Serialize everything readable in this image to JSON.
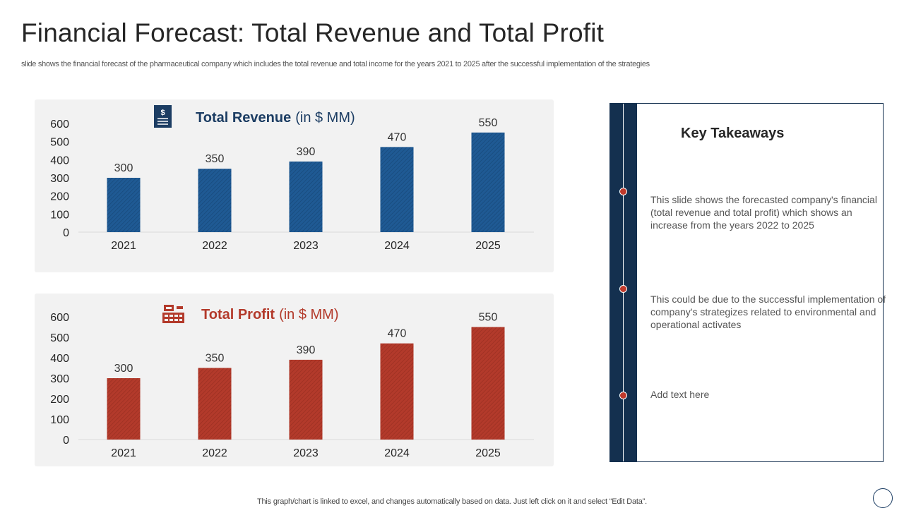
{
  "header": {
    "title": "Financial Forecast: Total Revenue and Total Profit",
    "subtitle": "slide shows the financial forecast of the pharmaceutical company which includes the total revenue and total income for the years 2021 to 2025 after the successful implementation of the strategies"
  },
  "colors": {
    "revenue_bar": "#1f5a94",
    "profit_bar": "#b33a2b",
    "panel_bg": "#f2f2f2",
    "navy": "#14304f",
    "accent_red": "#c0392b"
  },
  "chart_data": [
    {
      "type": "bar",
      "title_bold": "Total Revenue",
      "title_unit": "(in $ MM)",
      "icon": "dollar-document-icon",
      "categories": [
        "2021",
        "2022",
        "2023",
        "2024",
        "2025"
      ],
      "values": [
        300,
        350,
        390,
        470,
        550
      ],
      "data_labels": [
        "300",
        "350",
        "390",
        "470",
        "550"
      ],
      "yticks": [
        "0",
        "100",
        "200",
        "300",
        "400",
        "500",
        "600"
      ],
      "ylim": [
        0,
        600
      ],
      "xlabel": "",
      "ylabel": ""
    },
    {
      "type": "bar",
      "title_bold": "Total Profit",
      "title_unit": "(in $ MM)",
      "icon": "cash-register-icon",
      "categories": [
        "2021",
        "2022",
        "2023",
        "2024",
        "2025"
      ],
      "values": [
        300,
        350,
        390,
        470,
        550
      ],
      "data_labels": [
        "300",
        "350",
        "390",
        "470",
        "550"
      ],
      "yticks": [
        "0",
        "100",
        "200",
        "300",
        "400",
        "500",
        "600"
      ],
      "ylim": [
        0,
        600
      ],
      "xlabel": "",
      "ylabel": ""
    }
  ],
  "takeaways": {
    "heading": "Key Takeaways",
    "items": [
      "This slide shows the forecasted company's financial (total revenue and total profit) which shows an increase from the years 2022 to 2025",
      "This could be due to the successful implementation of company's strategizes related to environmental and operational activates",
      "Add text here"
    ]
  },
  "footer": {
    "note": "This graph/chart is linked to excel, and changes automatically based on data. Just left click on it and select “Edit Data”."
  }
}
